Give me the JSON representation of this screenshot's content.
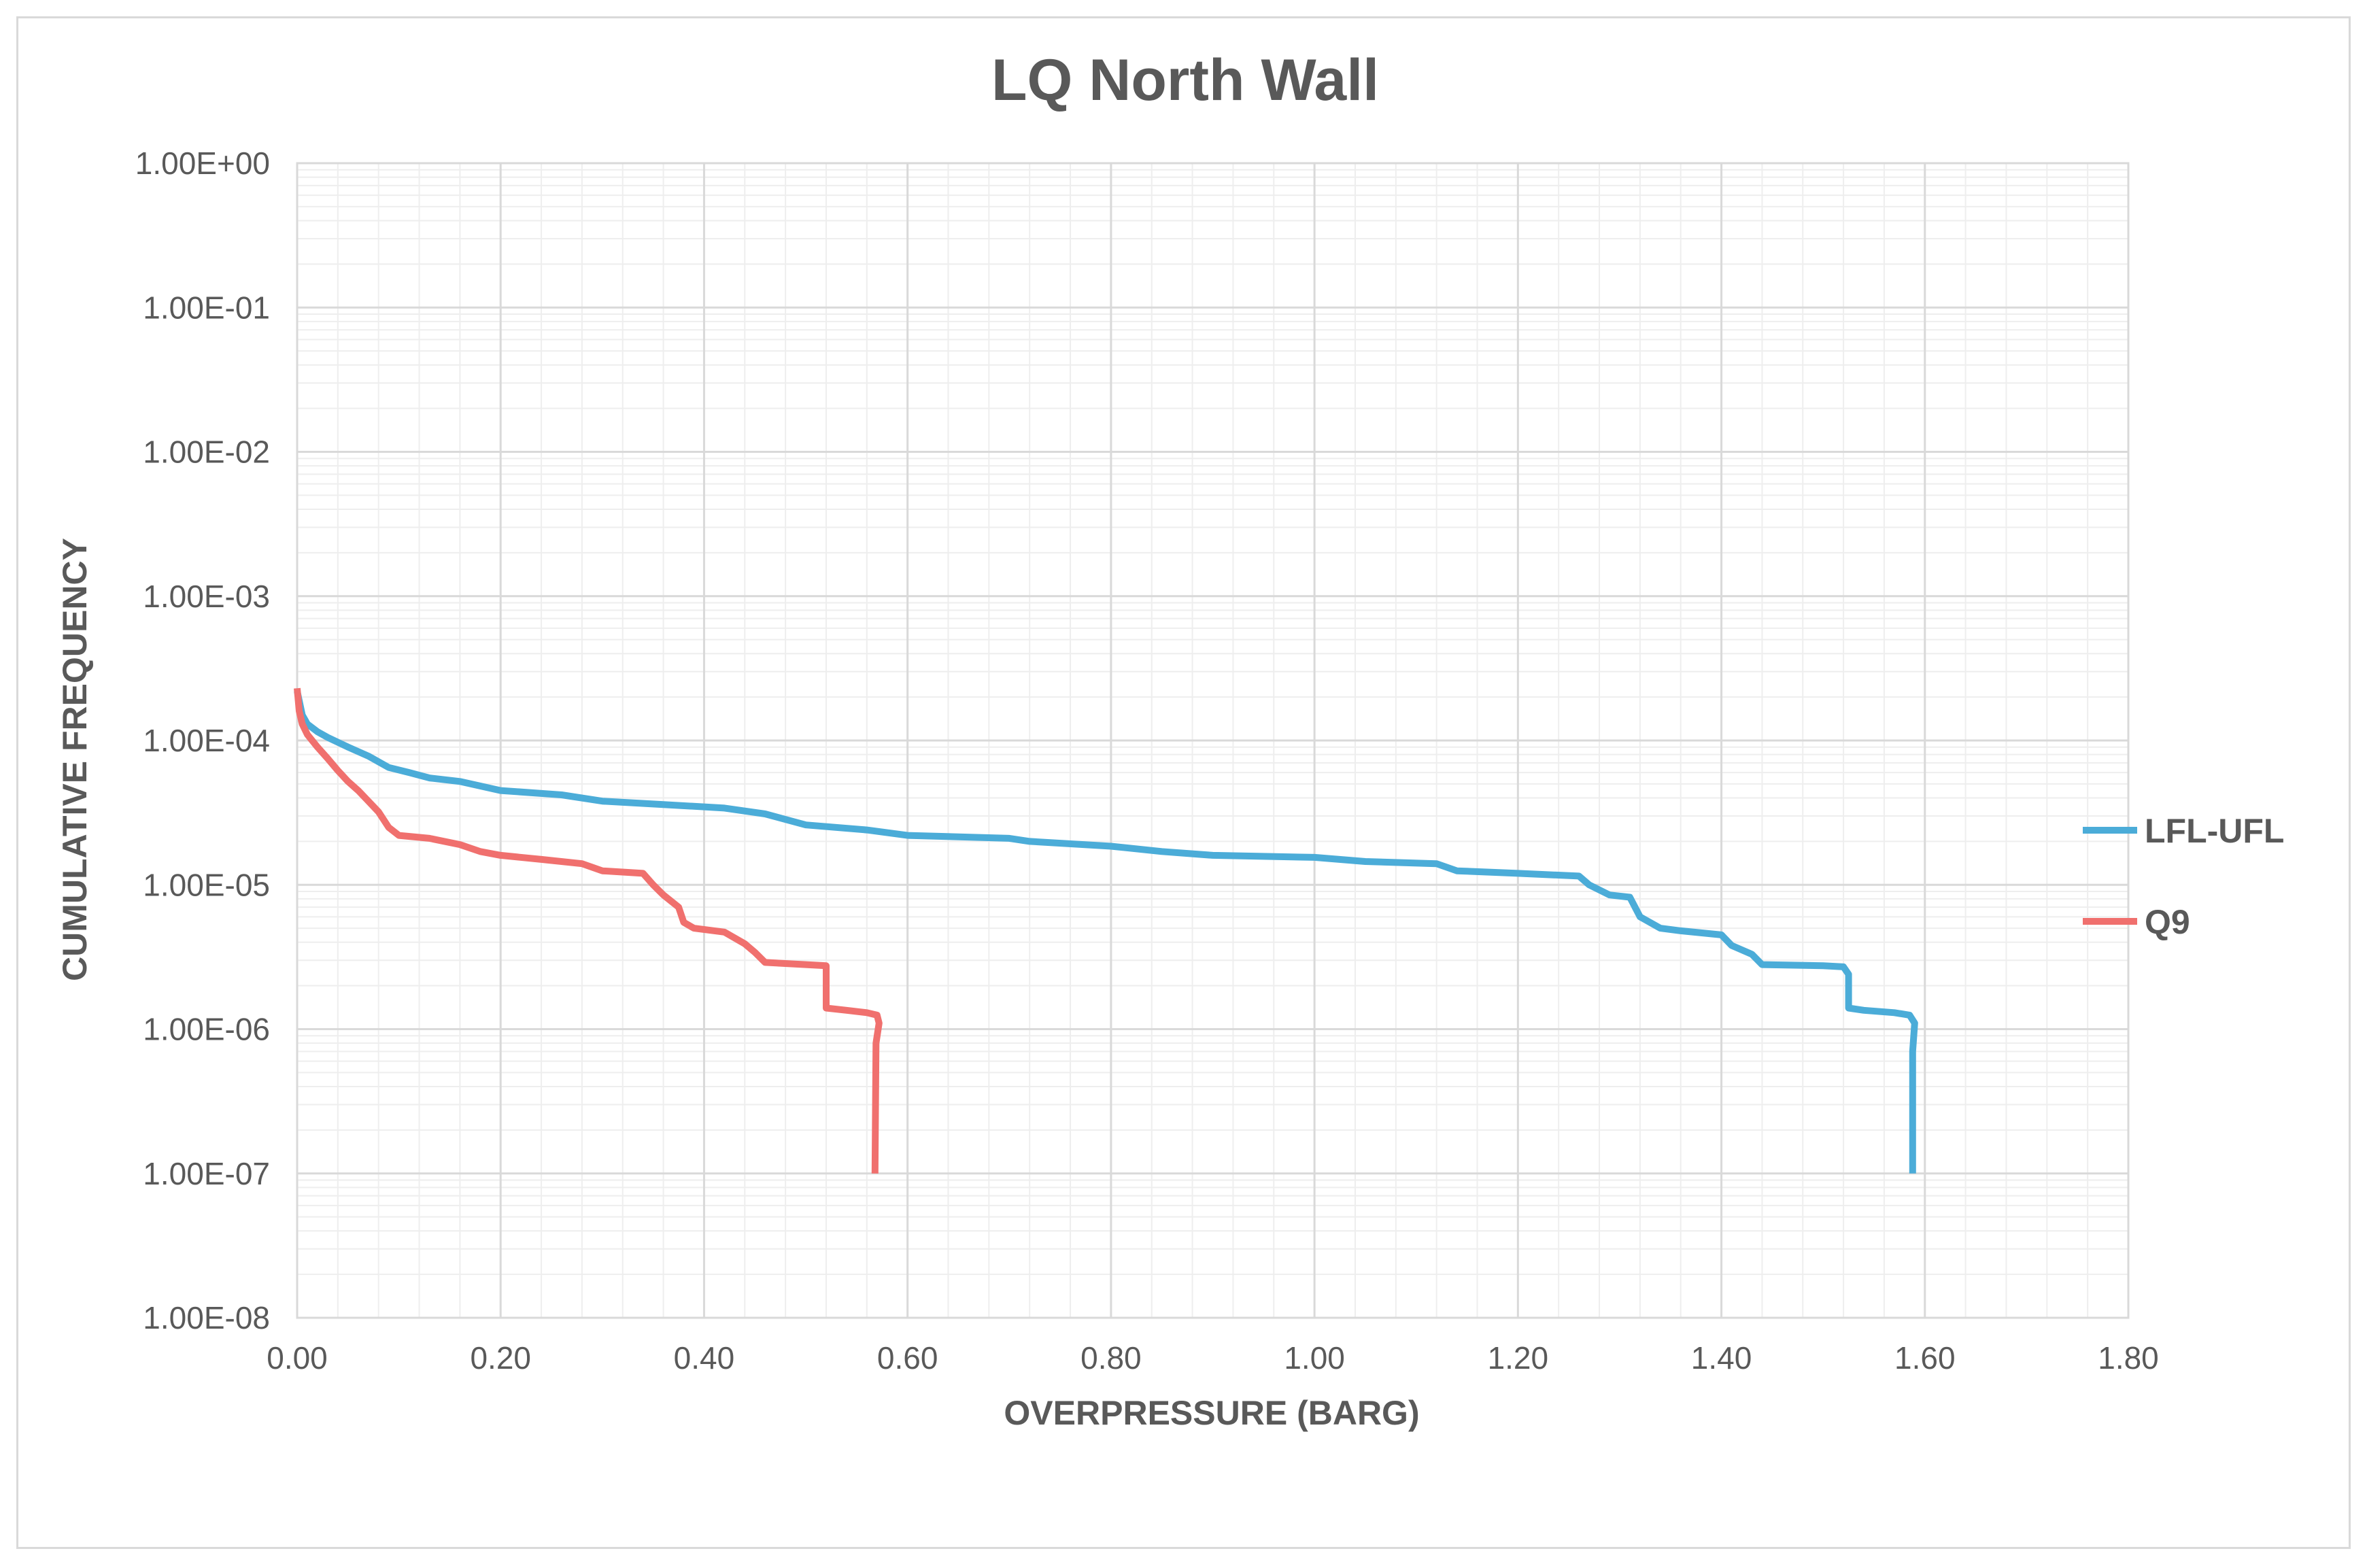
{
  "chart_data": {
    "type": "line",
    "title": "LQ North Wall",
    "xlabel": "OVERPRESSURE (BARG)",
    "ylabel": "CUMULATIVE FREQUENCY",
    "xlim": [
      0,
      1.8
    ],
    "ylim": [
      1e-08,
      1
    ],
    "yscale": "log",
    "grid": true,
    "legend_position": "right",
    "x_ticks": [
      "0.00",
      "0.20",
      "0.40",
      "0.60",
      "0.80",
      "1.00",
      "1.20",
      "1.40",
      "1.60",
      "1.80"
    ],
    "y_ticks": [
      "1.00E+00",
      "1.00E-01",
      "1.00E-02",
      "1.00E-03",
      "1.00E-04",
      "1.00E-05",
      "1.00E-06",
      "1.00E-07",
      "1.00E-08"
    ],
    "series": [
      {
        "name": "LFL-UFL",
        "color": "#4bacd8",
        "points": [
          [
            0.0,
            0.00022
          ],
          [
            0.005,
            0.00015
          ],
          [
            0.01,
            0.00013
          ],
          [
            0.02,
            0.000115
          ],
          [
            0.03,
            0.000105
          ],
          [
            0.05,
            9e-05
          ],
          [
            0.07,
            7.8e-05
          ],
          [
            0.09,
            6.5e-05
          ],
          [
            0.11,
            6e-05
          ],
          [
            0.13,
            5.5e-05
          ],
          [
            0.16,
            5.2e-05
          ],
          [
            0.2,
            4.5e-05
          ],
          [
            0.26,
            4.2e-05
          ],
          [
            0.3,
            3.8e-05
          ],
          [
            0.36,
            3.6e-05
          ],
          [
            0.42,
            3.4e-05
          ],
          [
            0.46,
            3.1e-05
          ],
          [
            0.5,
            2.6e-05
          ],
          [
            0.56,
            2.4e-05
          ],
          [
            0.6,
            2.2e-05
          ],
          [
            0.7,
            2.1e-05
          ],
          [
            0.72,
            2e-05
          ],
          [
            0.8,
            1.85e-05
          ],
          [
            0.85,
            1.7e-05
          ],
          [
            0.9,
            1.6e-05
          ],
          [
            1.0,
            1.55e-05
          ],
          [
            1.05,
            1.45e-05
          ],
          [
            1.12,
            1.4e-05
          ],
          [
            1.14,
            1.25e-05
          ],
          [
            1.2,
            1.2e-05
          ],
          [
            1.26,
            1.15e-05
          ],
          [
            1.27,
            1e-05
          ],
          [
            1.29,
            8.5e-06
          ],
          [
            1.31,
            8.2e-06
          ],
          [
            1.32,
            6e-06
          ],
          [
            1.34,
            5e-06
          ],
          [
            1.36,
            4.8e-06
          ],
          [
            1.4,
            4.5e-06
          ],
          [
            1.41,
            3.8e-06
          ],
          [
            1.43,
            3.3e-06
          ],
          [
            1.44,
            2.8e-06
          ],
          [
            1.5,
            2.75e-06
          ],
          [
            1.52,
            2.7e-06
          ],
          [
            1.525,
            2.4e-06
          ],
          [
            1.525,
            1.4e-06
          ],
          [
            1.54,
            1.35e-06
          ],
          [
            1.57,
            1.3e-06
          ],
          [
            1.585,
            1.25e-06
          ],
          [
            1.59,
            1.1e-06
          ],
          [
            1.588,
            7e-07
          ],
          [
            1.588,
            1e-07
          ]
        ]
      },
      {
        "name": "Q9",
        "color": "#f0706e",
        "points": [
          [
            0.0,
            0.00023
          ],
          [
            0.002,
            0.00016
          ],
          [
            0.005,
            0.00013
          ],
          [
            0.01,
            0.00011
          ],
          [
            0.02,
            9e-05
          ],
          [
            0.03,
            7.5e-05
          ],
          [
            0.04,
            6.2e-05
          ],
          [
            0.05,
            5.2e-05
          ],
          [
            0.06,
            4.5e-05
          ],
          [
            0.07,
            3.8e-05
          ],
          [
            0.08,
            3.2e-05
          ],
          [
            0.09,
            2.5e-05
          ],
          [
            0.1,
            2.2e-05
          ],
          [
            0.13,
            2.1e-05
          ],
          [
            0.16,
            1.9e-05
          ],
          [
            0.18,
            1.7e-05
          ],
          [
            0.2,
            1.6e-05
          ],
          [
            0.24,
            1.5e-05
          ],
          [
            0.28,
            1.4e-05
          ],
          [
            0.3,
            1.25e-05
          ],
          [
            0.34,
            1.2e-05
          ],
          [
            0.35,
            1e-05
          ],
          [
            0.36,
            8.5e-06
          ],
          [
            0.375,
            7e-06
          ],
          [
            0.38,
            5.5e-06
          ],
          [
            0.39,
            5e-06
          ],
          [
            0.42,
            4.7e-06
          ],
          [
            0.44,
            3.9e-06
          ],
          [
            0.45,
            3.4e-06
          ],
          [
            0.46,
            2.9e-06
          ],
          [
            0.5,
            2.8e-06
          ],
          [
            0.52,
            2.75e-06
          ],
          [
            0.52,
            1.4e-06
          ],
          [
            0.54,
            1.35e-06
          ],
          [
            0.56,
            1.3e-06
          ],
          [
            0.57,
            1.25e-06
          ],
          [
            0.572,
            1.1e-06
          ],
          [
            0.569,
            8e-07
          ],
          [
            0.568,
            1e-07
          ]
        ]
      }
    ]
  }
}
